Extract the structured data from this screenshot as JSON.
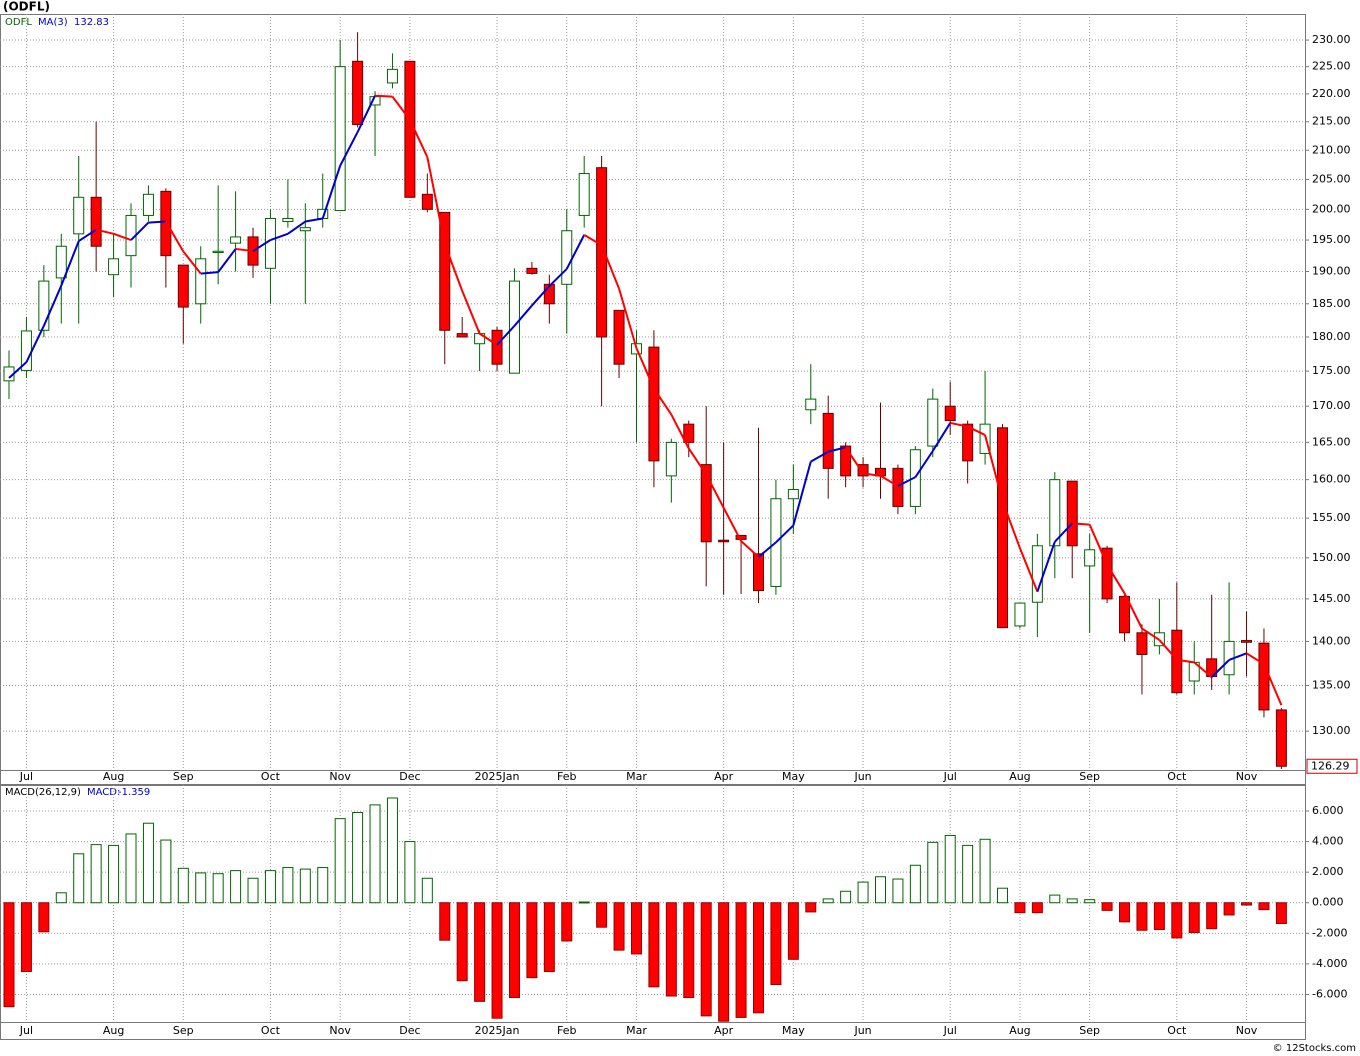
{
  "chart_data": [
    {
      "type": "candlestick",
      "title": "(ODFL)",
      "symbol": "ODFL",
      "ma_label": "MA(3)",
      "ma_value": 132.83,
      "categories": [
        null,
        "Jul",
        null,
        null,
        null,
        null,
        "Aug",
        null,
        null,
        null,
        "Sep",
        null,
        null,
        null,
        null,
        "Oct",
        null,
        null,
        null,
        "Nov",
        null,
        null,
        null,
        "Dec",
        null,
        null,
        null,
        null,
        "2025Jan",
        null,
        null,
        null,
        "Feb",
        null,
        null,
        null,
        "Mar",
        null,
        null,
        null,
        null,
        "Apr",
        null,
        null,
        null,
        "May",
        null,
        null,
        null,
        "Jun",
        null,
        null,
        null,
        null,
        "Jul",
        null,
        null,
        null,
        "Aug",
        null,
        null,
        null,
        "Sep",
        null,
        null,
        null,
        null,
        "Oct",
        null,
        null,
        null,
        "Nov",
        null,
        null
      ],
      "open": [
        173.6,
        175.1,
        181,
        189,
        196,
        202,
        189.5,
        192.5,
        199,
        203,
        191,
        185,
        193,
        194.5,
        195.5,
        190.5,
        198,
        196.5,
        198.5,
        199.8,
        226,
        218,
        222,
        226,
        202.5,
        199.5,
        180.5,
        179,
        181,
        174.7,
        190.5,
        188,
        188,
        199,
        207,
        184,
        177.5,
        178.5,
        160.5,
        167.5,
        162,
        152.2,
        152.8,
        150.5,
        146.5,
        157.5,
        169.5,
        169,
        164.5,
        162,
        161.5,
        161.5,
        156.5,
        164.5,
        170,
        167.5,
        163.5,
        167,
        141.8,
        144.6,
        151.5,
        159.8,
        149,
        151.2,
        145.3,
        141,
        139.5,
        141.3,
        135.5,
        138,
        136.2,
        140.1,
        139.8,
        132.3
      ],
      "high": [
        178,
        183,
        191,
        196,
        209,
        215,
        196,
        201,
        204,
        203.5,
        191,
        194,
        204,
        203,
        197,
        200,
        205,
        201,
        206,
        230,
        231.5,
        220.5,
        227.5,
        226,
        206,
        199.5,
        183,
        181,
        181.5,
        190.5,
        191.5,
        189.5,
        200,
        209,
        209,
        184,
        181,
        181,
        165.5,
        168,
        170,
        165,
        152.8,
        167,
        160,
        162,
        176,
        171.5,
        165,
        163,
        170.5,
        162,
        164.5,
        172.5,
        173.5,
        168,
        175,
        167.5,
        144.5,
        153,
        161,
        159.8,
        153,
        151.5,
        145.5,
        142,
        145,
        147,
        140,
        145.5,
        147,
        143.5,
        141.5,
        132.5
      ],
      "low": [
        171,
        174,
        180,
        182,
        182,
        190,
        186,
        187.5,
        198,
        187.5,
        179,
        182,
        188,
        190,
        189,
        185,
        197,
        185,
        197,
        199.8,
        214,
        209,
        221,
        202,
        199.5,
        176,
        180,
        175,
        175,
        174.7,
        189.5,
        182,
        180.5,
        197,
        170,
        174,
        165,
        159,
        157,
        163,
        146.5,
        145.5,
        145.6,
        144.5,
        145.5,
        153,
        167.5,
        157.5,
        159,
        159,
        157.5,
        155.5,
        155.5,
        163,
        166,
        159.5,
        162,
        141.6,
        141.5,
        140.5,
        147.5,
        147.5,
        141,
        144.5,
        140,
        134,
        138.5,
        134,
        134,
        134.5,
        134,
        136,
        131.5,
        126
      ],
      "close": [
        175.6,
        180.9,
        188.5,
        194,
        202,
        194,
        192,
        199,
        202.5,
        192.5,
        184.5,
        192,
        193.2,
        195.5,
        191,
        198.5,
        198.5,
        197,
        200,
        225,
        214.5,
        219.5,
        224.5,
        202,
        200,
        181,
        180,
        180.5,
        176,
        188.5,
        189.7,
        185,
        196.5,
        206,
        180,
        176,
        179,
        162.5,
        165,
        165,
        152,
        152,
        152.3,
        146,
        157.5,
        158.7,
        171,
        161.5,
        160.5,
        160.5,
        160.5,
        156.5,
        164,
        171,
        168,
        162.5,
        167.5,
        141.6,
        144.5,
        151.5,
        160,
        151.5,
        151,
        145,
        141,
        138.5,
        141,
        134.2,
        137.6,
        136,
        140,
        139.9,
        132.3,
        126.29
      ],
      "ma": [
        174,
        176.3,
        181.67,
        187.8,
        194.83,
        196.67,
        196,
        195,
        197.83,
        198,
        193.17,
        189.67,
        189.9,
        193.57,
        193.23,
        195,
        196,
        198,
        198.5,
        207.33,
        213.17,
        219.67,
        219.5,
        215.33,
        208.83,
        194.33,
        187,
        180.5,
        178.83,
        181.67,
        184.73,
        187.73,
        190.4,
        195.83,
        194.17,
        187.33,
        178.33,
        172.5,
        168.83,
        164.17,
        160.67,
        156.33,
        152.1,
        150.1,
        151.93,
        154.07,
        162.4,
        163.73,
        164.33,
        160.83,
        160.5,
        159.17,
        160.33,
        163.83,
        167.67,
        167.17,
        166,
        157.2,
        151.2,
        145.87,
        152,
        154.33,
        154.17,
        149.17,
        145.67,
        141.5,
        140.17,
        137.9,
        137.6,
        135.93,
        137.87,
        138.63,
        137.4,
        132.83
      ],
      "up_color": "#006600",
      "down_color": "#ff0000",
      "ma_up_color": "#0000cc",
      "ma_down_color": "#ff0000",
      "log_scale": true,
      "grid": true,
      "ylim": [
        125.9,
        235
      ],
      "yticks": [
        {
          "value": 130,
          "label": "130.00"
        },
        {
          "value": 135,
          "label": "135.00"
        },
        {
          "value": 140,
          "label": "140.00"
        },
        {
          "value": 145,
          "label": "145.00"
        },
        {
          "value": 150,
          "label": "150.00"
        },
        {
          "value": 155,
          "label": "155.00"
        },
        {
          "value": 160,
          "label": "160.00"
        },
        {
          "value": 165,
          "label": "165.00"
        },
        {
          "value": 170,
          "label": "170.00"
        },
        {
          "value": 175,
          "label": "175.00"
        },
        {
          "value": 180,
          "label": "180.00"
        },
        {
          "value": 185,
          "label": "185.00"
        },
        {
          "value": 190,
          "label": "190.00"
        },
        {
          "value": 195,
          "label": "195.00"
        },
        {
          "value": 200,
          "label": "200.00"
        },
        {
          "value": 205,
          "label": "205.00"
        },
        {
          "value": 210,
          "label": "210.00"
        },
        {
          "value": 215,
          "label": "215.00"
        },
        {
          "value": 220,
          "label": "220.00"
        },
        {
          "value": 225,
          "label": "225.00"
        },
        {
          "value": 230,
          "label": "230.00"
        }
      ]
    },
    {
      "type": "bar",
      "title": "MACD(26,12,9)",
      "value_name": "MACD:",
      "value": -1.359,
      "categories": [
        null,
        "Jul",
        null,
        null,
        null,
        null,
        "Aug",
        null,
        null,
        null,
        "Sep",
        null,
        null,
        null,
        null,
        "Oct",
        null,
        null,
        null,
        "Nov",
        null,
        null,
        null,
        "Dec",
        null,
        null,
        null,
        null,
        "2025Jan",
        null,
        null,
        null,
        "Feb",
        null,
        null,
        null,
        "Mar",
        null,
        null,
        null,
        null,
        "Apr",
        null,
        null,
        null,
        "May",
        null,
        null,
        null,
        "Jun",
        null,
        null,
        null,
        null,
        "Jul",
        null,
        null,
        null,
        "Aug",
        null,
        null,
        null,
        "Sep",
        null,
        null,
        null,
        null,
        "Oct",
        null,
        null,
        null,
        "Nov",
        null,
        null
      ],
      "values": [
        -6.8,
        -4.5,
        -1.9,
        0.65,
        3.2,
        3.8,
        3.75,
        4.5,
        5.2,
        4.1,
        2.25,
        1.95,
        1.9,
        2.1,
        1.6,
        2.1,
        2.3,
        2.2,
        2.3,
        5.5,
        5.9,
        6.4,
        6.85,
        4.0,
        1.6,
        -2.45,
        -5.1,
        -6.45,
        -7.55,
        -6.2,
        -4.9,
        -4.5,
        -2.5,
        0.05,
        -1.6,
        -3.1,
        -3.35,
        -5.5,
        -6.1,
        -6.2,
        -7.4,
        -7.75,
        -7.5,
        -7.2,
        -5.35,
        -3.7,
        -0.6,
        0.25,
        0.75,
        1.35,
        1.7,
        1.55,
        2.45,
        3.95,
        4.4,
        3.75,
        4.15,
        0.95,
        -0.65,
        -0.65,
        0.5,
        0.25,
        0.2,
        -0.5,
        -1.25,
        -1.8,
        -1.75,
        -2.3,
        -1.95,
        -1.7,
        -0.8,
        -0.15,
        -0.45,
        -1.359
      ],
      "positive_color": "#006600",
      "negative_color": "#ff0000",
      "grid": true,
      "ylim": [
        -7.8,
        7.7
      ],
      "yticks": [
        {
          "value": -6,
          "label": "-6.000"
        },
        {
          "value": -4,
          "label": "-4.000"
        },
        {
          "value": -2,
          "label": "-2.000"
        },
        {
          "value": 0,
          "label": "0.000"
        },
        {
          "value": 2,
          "label": "2.000"
        },
        {
          "value": 4,
          "label": "4.000"
        },
        {
          "value": 6,
          "label": "6.000"
        }
      ]
    }
  ],
  "footer": "© 12Stocks.com"
}
